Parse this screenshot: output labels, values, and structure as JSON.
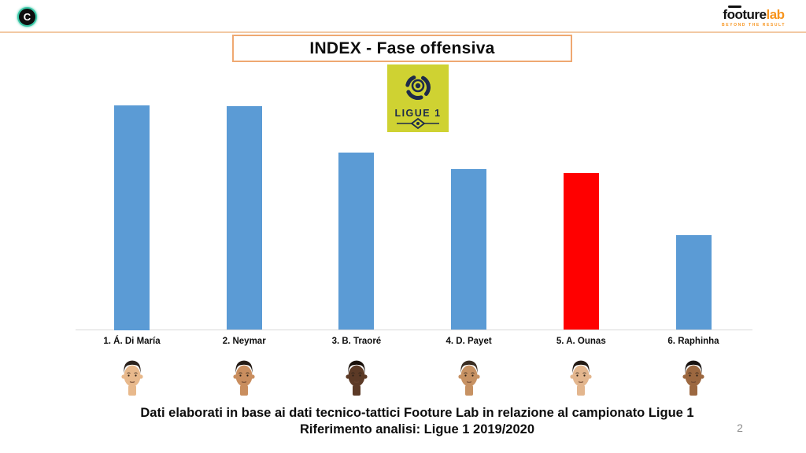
{
  "slide": {
    "title": "INDEX - Fase offensiva",
    "footer_line1": "Dati elaborati in base ai dati tecnico-tattici Footure Lab in relazione al campionato Ligue 1",
    "footer_line2": "Riferimento analisi: Ligue 1 2019/2020",
    "page_number": "2"
  },
  "brand": {
    "logo_letter": "C",
    "name_part1": "f",
    "name_part2": "oo",
    "name_part3": "ture",
    "name_accent": "lab",
    "tagline": "BEYOND THE RESULT"
  },
  "ligue_logo": {
    "text": "LIGUE 1"
  },
  "colors": {
    "bar_blue": "#5B9BD5",
    "bar_red": "#FF0000",
    "accent_border": "#EFA871",
    "line_peach": "#F2C9A4",
    "ligue_yellow": "#CFD232",
    "ligue_navy": "#1D2A4A",
    "axis_gray": "#D9D9D9",
    "page_gray": "#8C8C8C",
    "brand_orange": "#F7941D",
    "logo_teal": "#3BC9A8"
  },
  "chart_data": {
    "type": "bar",
    "title": "INDEX - Fase offensiva",
    "categories": [
      "1. Á. Di María",
      "2. Neymar",
      "3. B. Traoré",
      "4. D. Payet",
      "5. A. Ounas",
      "6. Raphinha"
    ],
    "values": [
      100,
      99.6,
      79.0,
      71.6,
      69.9,
      42.2
    ],
    "bar_colors": [
      "#5B9BD5",
      "#5B9BD5",
      "#5B9BD5",
      "#5B9BD5",
      "#FF0000",
      "#5B9BD5"
    ],
    "highlighted_category": "5. A. Ounas",
    "xlabel": "",
    "ylabel": "",
    "ylim": [
      0,
      100
    ],
    "grid": false,
    "legend_position": "none"
  },
  "players": [
    {
      "label": "1. Á. Di María",
      "skin": "#E8B98C",
      "hair": "#2B221C"
    },
    {
      "label": "2. Neymar",
      "skin": "#C98E5F",
      "hair": "#241B15"
    },
    {
      "label": "3. B. Traoré",
      "skin": "#5C3A26",
      "hair": "#1A110B"
    },
    {
      "label": "4. D. Payet",
      "skin": "#C79263",
      "hair": "#3A2D22"
    },
    {
      "label": "5. A. Ounas",
      "skin": "#E3B68E",
      "hair": "#231A14"
    },
    {
      "label": "6. Raphinha",
      "skin": "#9C6840",
      "hair": "#181210"
    }
  ]
}
